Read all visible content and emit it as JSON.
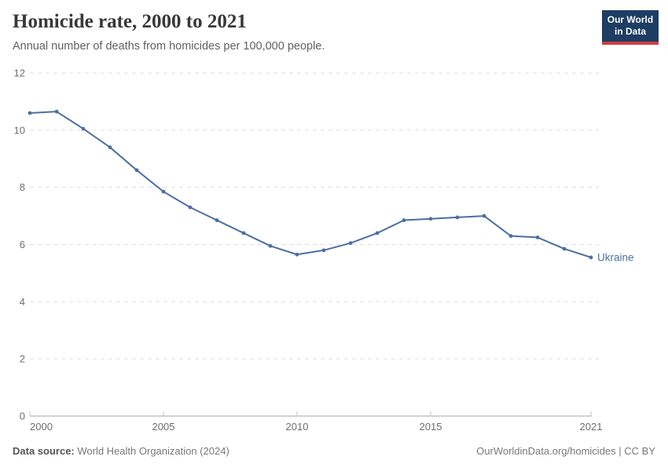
{
  "header": {
    "title": "Homicide rate, 2000 to 2021",
    "subtitle": "Annual number of deaths from homicides per 100,000 people.",
    "logo": {
      "line1": "Our World",
      "line2": "in Data",
      "bg": "#1d3d63",
      "bar": "#cd3d3f"
    }
  },
  "chart_data": {
    "type": "line",
    "title": "Homicide rate, 2000 to 2021",
    "subtitle": "Annual number of deaths from homicides per 100,000 people.",
    "x": [
      2000,
      2001,
      2002,
      2003,
      2004,
      2005,
      2006,
      2007,
      2008,
      2009,
      2010,
      2011,
      2012,
      2013,
      2014,
      2015,
      2016,
      2017,
      2018,
      2019,
      2020,
      2021
    ],
    "series": [
      {
        "name": "Ukraine",
        "color": "#4d6fa1",
        "values": [
          10.6,
          10.65,
          10.05,
          9.4,
          8.6,
          7.85,
          7.3,
          6.85,
          6.4,
          5.95,
          5.65,
          5.8,
          6.05,
          6.4,
          6.85,
          6.9,
          6.95,
          7.0,
          6.3,
          6.25,
          5.85,
          5.55
        ]
      }
    ],
    "xlim": [
      2000,
      2021
    ],
    "ylim": [
      0,
      12
    ],
    "y_ticks": [
      0,
      2,
      4,
      6,
      8,
      10,
      12
    ],
    "x_ticks": [
      2000,
      2005,
      2010,
      2015,
      2021
    ],
    "grid": "horizontal-dashed",
    "legend": "end-of-line-label",
    "end_label": "Ukraine",
    "colors": {
      "gridline": "#dedede",
      "axis": "#a5a5a5",
      "tick": "#c2c2c2",
      "tick_label": "#6e6e6e"
    }
  },
  "footer": {
    "source_label": "Data source:",
    "source_value": " World Health Organization (2024)",
    "credit": "OurWorldinData.org/homicides | CC BY"
  }
}
